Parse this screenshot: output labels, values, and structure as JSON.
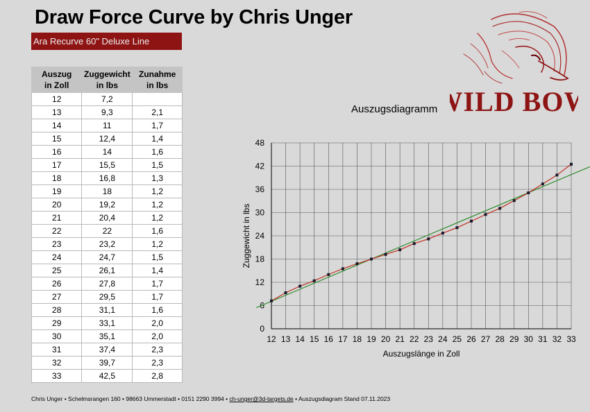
{
  "header": {
    "title": "Draw Force Curve by Chris Unger",
    "subtitle": "Ara Recurve 60\" Deluxe Line"
  },
  "table": {
    "headers": [
      "Auszug\nin Zoll",
      "Zuggewicht\nin lbs",
      "Zunahme\nin lbs"
    ],
    "rows": [
      [
        "12",
        "7,2",
        ""
      ],
      [
        "13",
        "9,3",
        "2,1"
      ],
      [
        "14",
        "11",
        "1,7"
      ],
      [
        "15",
        "12,4",
        "1,4"
      ],
      [
        "16",
        "14",
        "1,6"
      ],
      [
        "17",
        "15,5",
        "1,5"
      ],
      [
        "18",
        "16,8",
        "1,3"
      ],
      [
        "19",
        "18",
        "1,2"
      ],
      [
        "20",
        "19,2",
        "1,2"
      ],
      [
        "21",
        "20,4",
        "1,2"
      ],
      [
        "22",
        "22",
        "1,6"
      ],
      [
        "23",
        "23,2",
        "1,2"
      ],
      [
        "24",
        "24,7",
        "1,5"
      ],
      [
        "25",
        "26,1",
        "1,4"
      ],
      [
        "26",
        "27,8",
        "1,7"
      ],
      [
        "27",
        "29,5",
        "1,7"
      ],
      [
        "28",
        "31,1",
        "1,6"
      ],
      [
        "29",
        "33,1",
        "2,0"
      ],
      [
        "30",
        "35,1",
        "2,0"
      ],
      [
        "31",
        "37,4",
        "2,3"
      ],
      [
        "32",
        "39,7",
        "2,3"
      ],
      [
        "33",
        "42,5",
        "2,8"
      ]
    ]
  },
  "logo": {
    "text": "WILD BOW",
    "color": "#8e1414"
  },
  "chart_caption": "Auszugsdiagramm",
  "chart_data": {
    "type": "line",
    "xlabel": "Auszugslänge in Zoll",
    "ylabel": "Zuggewicht in lbs",
    "xlim": [
      12,
      33
    ],
    "ylim": [
      0,
      48
    ],
    "x_ticks": [
      12,
      13,
      14,
      15,
      16,
      17,
      18,
      19,
      20,
      21,
      22,
      23,
      24,
      25,
      26,
      27,
      28,
      29,
      30,
      31,
      32,
      33
    ],
    "y_ticks": [
      0,
      6,
      12,
      18,
      24,
      30,
      36,
      42,
      48
    ],
    "grid": true,
    "series": [
      {
        "x": [
          12,
          13,
          14,
          15,
          16,
          17,
          18,
          19,
          20,
          21,
          22,
          23,
          24,
          25,
          26,
          27,
          28,
          29,
          30,
          31,
          32,
          33
        ],
        "values": [
          7.2,
          9.3,
          11,
          12.4,
          14,
          15.5,
          16.8,
          18,
          19.2,
          20.4,
          22,
          23.2,
          24.7,
          26.1,
          27.8,
          29.5,
          31.1,
          33.1,
          35.1,
          37.4,
          39.7,
          42.5
        ],
        "color": "#c0392b",
        "marker_color": "#1a1a2e"
      }
    ],
    "trendline": {
      "type": "linear",
      "color": "#2e8b2e"
    }
  },
  "footer": {
    "prefix": "Chris Unger • Schelmsrangen 160 • 98663 Ummerstadt • 0151 2290 3994 • ",
    "email": "ch-unger@3d-targets.de",
    "suffix": " • Auszugsdiagram Stand 07.11.2023"
  }
}
